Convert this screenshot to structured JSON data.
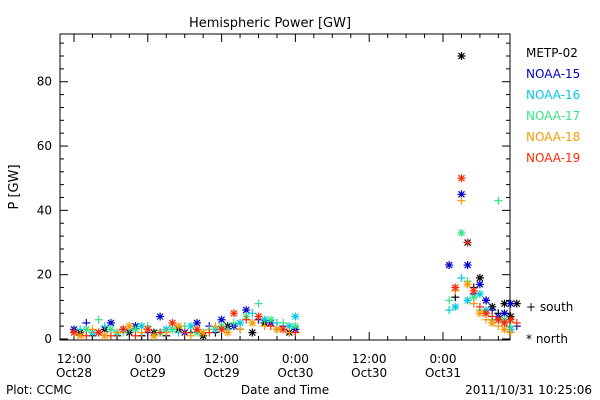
{
  "chart_data": {
    "type": "scatter",
    "title": "Hemispheric Power [GW]",
    "xlabel": "Date and Time",
    "ylabel": "P [GW]",
    "ylim": [
      0,
      95
    ],
    "yticks": [
      0,
      20,
      40,
      60,
      80
    ],
    "xlim_hours": [
      -16,
      128
    ],
    "xticks": [
      {
        "hour": 0,
        "line1": "12:00",
        "line2": "Oct28"
      },
      {
        "hour": 12,
        "line1": "0:00",
        "line2": "Oct29"
      },
      {
        "hour": 24,
        "line1": "12:00",
        "line2": "Oct29"
      },
      {
        "hour": 36,
        "line1": "0:00",
        "line2": "Oct30"
      },
      {
        "hour": 48,
        "line1": "12:00",
        "line2": "Oct30"
      },
      {
        "hour": 60,
        "line1": "0:00",
        "line2": "Oct31"
      }
    ],
    "grid": false,
    "legend_position": "right",
    "marker_legend": {
      "plus": "+ south",
      "star": "* north"
    },
    "series": [
      {
        "name": "METP-02",
        "color": "#000000",
        "points": [
          [
            1,
            2,
            "s"
          ],
          [
            3,
            1,
            "p"
          ],
          [
            5,
            3,
            "s"
          ],
          [
            7,
            1,
            "p"
          ],
          [
            9,
            2,
            "s"
          ],
          [
            11,
            1,
            "p"
          ],
          [
            13,
            2,
            "s"
          ],
          [
            15,
            1,
            "p"
          ],
          [
            17,
            3,
            "s"
          ],
          [
            19,
            2,
            "p"
          ],
          [
            21,
            1,
            "s"
          ],
          [
            23,
            2,
            "p"
          ],
          [
            25,
            4,
            "s"
          ],
          [
            27,
            3,
            "p"
          ],
          [
            29,
            2,
            "s"
          ],
          [
            31,
            5,
            "s"
          ],
          [
            33,
            3,
            "p"
          ],
          [
            35,
            2,
            "s"
          ],
          [
            36,
            3,
            "p"
          ],
          [
            62,
            13,
            "p"
          ],
          [
            63,
            88,
            "s"
          ],
          [
            64,
            30,
            "s"
          ],
          [
            65,
            16,
            "p"
          ],
          [
            66,
            19,
            "s"
          ],
          [
            67,
            12,
            "p"
          ],
          [
            68,
            10,
            "s"
          ],
          [
            69,
            8,
            "p"
          ],
          [
            70,
            11,
            "s"
          ],
          [
            71,
            7,
            "s"
          ],
          [
            72,
            11,
            "s"
          ]
        ]
      },
      {
        "name": "NOAA-15",
        "color": "#0000cc",
        "points": [
          [
            0,
            3,
            "s"
          ],
          [
            2,
            5,
            "p"
          ],
          [
            4,
            2,
            "s"
          ],
          [
            6,
            5,
            "s"
          ],
          [
            8,
            3,
            "p"
          ],
          [
            10,
            4,
            "s"
          ],
          [
            12,
            2,
            "p"
          ],
          [
            14,
            7,
            "s"
          ],
          [
            16,
            3,
            "p"
          ],
          [
            18,
            2,
            "s"
          ],
          [
            20,
            5,
            "s"
          ],
          [
            22,
            4,
            "p"
          ],
          [
            24,
            6,
            "s"
          ],
          [
            26,
            4,
            "s"
          ],
          [
            28,
            9,
            "s"
          ],
          [
            30,
            6,
            "p"
          ],
          [
            32,
            5,
            "s"
          ],
          [
            34,
            4,
            "p"
          ],
          [
            36,
            3,
            "s"
          ],
          [
            61,
            23,
            "s"
          ],
          [
            63,
            45,
            "s"
          ],
          [
            64,
            23,
            "s"
          ],
          [
            65,
            14,
            "p"
          ],
          [
            66,
            17,
            "s"
          ],
          [
            67,
            12,
            "s"
          ],
          [
            68,
            9,
            "p"
          ],
          [
            69,
            7,
            "s"
          ],
          [
            70,
            8,
            "s"
          ],
          [
            71,
            11,
            "s"
          ],
          [
            72,
            4,
            "p"
          ]
        ]
      },
      {
        "name": "NOAA-16",
        "color": "#00c8e6",
        "points": [
          [
            1,
            3,
            "p"
          ],
          [
            3,
            2,
            "s"
          ],
          [
            5,
            4,
            "p"
          ],
          [
            7,
            2,
            "s"
          ],
          [
            9,
            3,
            "p"
          ],
          [
            11,
            4,
            "s"
          ],
          [
            13,
            1,
            "p"
          ],
          [
            15,
            3,
            "s"
          ],
          [
            17,
            2,
            "p"
          ],
          [
            19,
            4,
            "s"
          ],
          [
            21,
            2,
            "p"
          ],
          [
            23,
            3,
            "s"
          ],
          [
            25,
            3,
            "p"
          ],
          [
            27,
            5,
            "s"
          ],
          [
            29,
            8,
            "p"
          ],
          [
            31,
            6,
            "s"
          ],
          [
            33,
            5,
            "p"
          ],
          [
            35,
            4,
            "s"
          ],
          [
            36,
            7,
            "s"
          ],
          [
            61,
            9,
            "p"
          ],
          [
            62,
            10,
            "s"
          ],
          [
            63,
            19,
            "p"
          ],
          [
            64,
            12,
            "s"
          ],
          [
            65,
            11,
            "p"
          ],
          [
            66,
            14,
            "s"
          ],
          [
            67,
            9,
            "s"
          ],
          [
            68,
            6,
            "p"
          ],
          [
            69,
            6,
            "s"
          ],
          [
            70,
            5,
            "p"
          ],
          [
            71,
            3,
            "s"
          ]
        ]
      },
      {
        "name": "NOAA-17",
        "color": "#33e680",
        "points": [
          [
            0,
            2,
            "p"
          ],
          [
            2,
            3,
            "s"
          ],
          [
            4,
            6,
            "p"
          ],
          [
            6,
            3,
            "s"
          ],
          [
            8,
            2,
            "p"
          ],
          [
            10,
            3,
            "s"
          ],
          [
            12,
            4,
            "p"
          ],
          [
            14,
            2,
            "s"
          ],
          [
            16,
            3,
            "s"
          ],
          [
            18,
            4,
            "p"
          ],
          [
            20,
            2,
            "s"
          ],
          [
            22,
            3,
            "p"
          ],
          [
            24,
            4,
            "s"
          ],
          [
            26,
            5,
            "p"
          ],
          [
            28,
            7,
            "s"
          ],
          [
            30,
            11,
            "p"
          ],
          [
            32,
            6,
            "s"
          ],
          [
            34,
            5,
            "p"
          ],
          [
            36,
            4,
            "s"
          ],
          [
            61,
            12,
            "p"
          ],
          [
            63,
            33,
            "s"
          ],
          [
            64,
            18,
            "p"
          ],
          [
            65,
            13,
            "s"
          ],
          [
            66,
            9,
            "p"
          ],
          [
            67,
            8,
            "s"
          ],
          [
            68,
            6,
            "p"
          ],
          [
            69,
            43,
            "p"
          ],
          [
            70,
            6,
            "s"
          ],
          [
            71,
            4,
            "p"
          ]
        ]
      },
      {
        "name": "NOAA-18",
        "color": "#ff9900",
        "points": [
          [
            1,
            1,
            "s"
          ],
          [
            3,
            3,
            "p"
          ],
          [
            5,
            1,
            "s"
          ],
          [
            7,
            2,
            "p"
          ],
          [
            9,
            4,
            "s"
          ],
          [
            11,
            2,
            "p"
          ],
          [
            13,
            1,
            "s"
          ],
          [
            15,
            2,
            "p"
          ],
          [
            17,
            4,
            "s"
          ],
          [
            19,
            1,
            "p"
          ],
          [
            21,
            2,
            "s"
          ],
          [
            23,
            4,
            "p"
          ],
          [
            25,
            2,
            "s"
          ],
          [
            27,
            3,
            "p"
          ],
          [
            29,
            5,
            "s"
          ],
          [
            31,
            4,
            "p"
          ],
          [
            33,
            3,
            "s"
          ],
          [
            35,
            2,
            "p"
          ],
          [
            62,
            15,
            "p"
          ],
          [
            63,
            43,
            "p"
          ],
          [
            64,
            17,
            "s"
          ],
          [
            65,
            11,
            "p"
          ],
          [
            66,
            8,
            "s"
          ],
          [
            67,
            6,
            "p"
          ],
          [
            68,
            5,
            "s"
          ],
          [
            69,
            4,
            "p"
          ],
          [
            70,
            3,
            "s"
          ],
          [
            71,
            2,
            "p"
          ]
        ]
      },
      {
        "name": "NOAA-19",
        "color": "#ff2a00",
        "points": [
          [
            0,
            2,
            "s"
          ],
          [
            2,
            1,
            "p"
          ],
          [
            4,
            2,
            "s"
          ],
          [
            6,
            1,
            "p"
          ],
          [
            8,
            3,
            "s"
          ],
          [
            10,
            1,
            "p"
          ],
          [
            12,
            3,
            "s"
          ],
          [
            14,
            2,
            "p"
          ],
          [
            16,
            5,
            "s"
          ],
          [
            18,
            2,
            "p"
          ],
          [
            20,
            3,
            "s"
          ],
          [
            22,
            2,
            "p"
          ],
          [
            24,
            3,
            "s"
          ],
          [
            26,
            8,
            "s"
          ],
          [
            28,
            6,
            "p"
          ],
          [
            30,
            7,
            "s"
          ],
          [
            32,
            4,
            "p"
          ],
          [
            34,
            3,
            "s"
          ],
          [
            36,
            2,
            "p"
          ],
          [
            62,
            16,
            "s"
          ],
          [
            63,
            50,
            "s"
          ],
          [
            64,
            30,
            "p"
          ],
          [
            65,
            15,
            "s"
          ],
          [
            66,
            10,
            "p"
          ],
          [
            67,
            8,
            "s"
          ],
          [
            68,
            7,
            "p"
          ],
          [
            69,
            6,
            "s"
          ],
          [
            70,
            5,
            "s"
          ],
          [
            71,
            6,
            "s"
          ],
          [
            72,
            5,
            "p"
          ]
        ]
      }
    ]
  },
  "footer": {
    "left": "Plot: CCMC",
    "right": "2011/10/31  10:25:06"
  }
}
